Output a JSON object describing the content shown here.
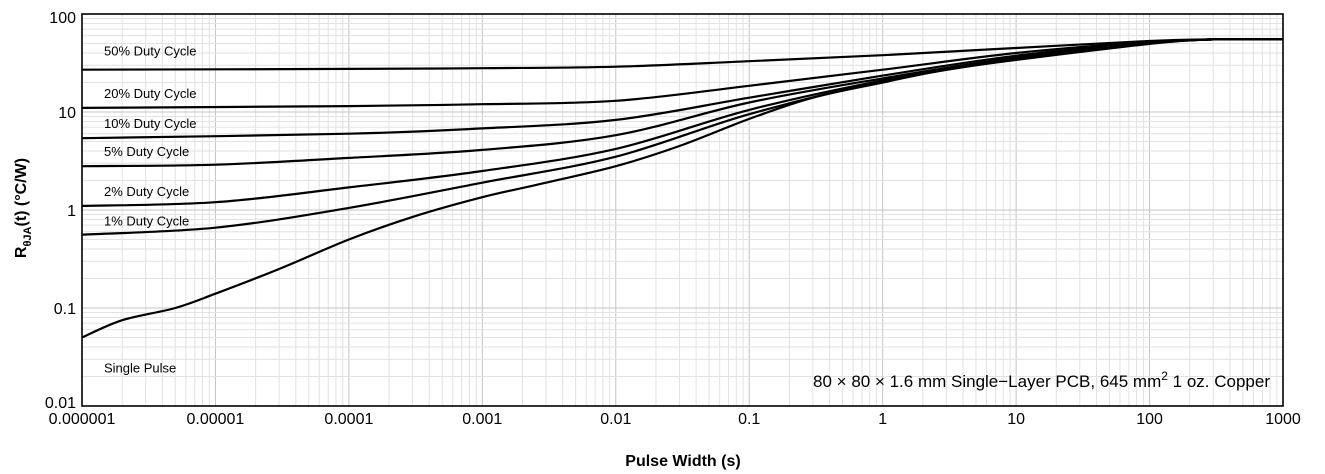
{
  "chart_data": {
    "type": "line",
    "title": "",
    "xlabel": "Pulse Width (s)",
    "ylabel": {
      "main": "R",
      "sub": "θJA",
      "suffix": "(t) (°C/W)"
    },
    "x_scale": "log",
    "y_scale": "log",
    "xlim": [
      1e-06,
      1000
    ],
    "ylim": [
      0.01,
      100
    ],
    "grid": true,
    "x_ticks": [
      {
        "value": 1e-06,
        "label": "0.000001"
      },
      {
        "value": 1e-05,
        "label": "0.00001"
      },
      {
        "value": 0.0001,
        "label": "0.0001"
      },
      {
        "value": 0.001,
        "label": "0.001"
      },
      {
        "value": 0.01,
        "label": "0.01"
      },
      {
        "value": 0.1,
        "label": "0.1"
      },
      {
        "value": 1,
        "label": "1"
      },
      {
        "value": 10,
        "label": "10"
      },
      {
        "value": 100,
        "label": "100"
      },
      {
        "value": 1000,
        "label": "1000"
      }
    ],
    "y_ticks": [
      {
        "value": 0.01,
        "label": "0.01"
      },
      {
        "value": 0.1,
        "label": "0.1"
      },
      {
        "value": 1,
        "label": "1"
      },
      {
        "value": 10,
        "label": "10"
      },
      {
        "value": 100,
        "label": "100"
      }
    ],
    "annotation": {
      "prefix": "80 × 80 × 1.6 mm Single−Layer PCB, 645 mm",
      "sup": "2",
      "suffix": " 1 oz. Copper"
    },
    "series": [
      {
        "name": "50% Duty Cycle",
        "points": [
          [
            1e-06,
            27
          ],
          [
            0.0001,
            27.5
          ],
          [
            0.001,
            28
          ],
          [
            0.01,
            29
          ],
          [
            0.1,
            33
          ],
          [
            1,
            38
          ],
          [
            10,
            45
          ],
          [
            100,
            53
          ],
          [
            300,
            55
          ],
          [
            1000,
            55
          ]
        ]
      },
      {
        "name": "20% Duty Cycle",
        "points": [
          [
            1e-06,
            11
          ],
          [
            0.0001,
            11.5
          ],
          [
            0.001,
            12
          ],
          [
            0.01,
            13
          ],
          [
            0.1,
            18.5
          ],
          [
            1,
            27
          ],
          [
            10,
            40
          ],
          [
            100,
            52
          ],
          [
            300,
            55
          ],
          [
            1000,
            55
          ]
        ]
      },
      {
        "name": "10% Duty Cycle",
        "points": [
          [
            1e-06,
            5.4
          ],
          [
            0.0001,
            6
          ],
          [
            0.001,
            6.8
          ],
          [
            0.01,
            8.3
          ],
          [
            0.1,
            14
          ],
          [
            1,
            23.5
          ],
          [
            10,
            37.5
          ],
          [
            100,
            51
          ],
          [
            300,
            55
          ],
          [
            1000,
            55
          ]
        ]
      },
      {
        "name": "5% Duty Cycle",
        "points": [
          [
            1e-06,
            2.8
          ],
          [
            1e-05,
            2.9
          ],
          [
            0.0001,
            3.4
          ],
          [
            0.001,
            4.1
          ],
          [
            0.01,
            5.8
          ],
          [
            0.1,
            12.5
          ],
          [
            1,
            22
          ],
          [
            10,
            36
          ],
          [
            100,
            50.5
          ],
          [
            300,
            55
          ],
          [
            1000,
            55
          ]
        ]
      },
      {
        "name": "2% Duty Cycle",
        "points": [
          [
            1e-06,
            1.1
          ],
          [
            1e-05,
            1.2
          ],
          [
            0.0001,
            1.7
          ],
          [
            0.001,
            2.5
          ],
          [
            0.01,
            4.2
          ],
          [
            0.1,
            10.5
          ],
          [
            1,
            21
          ],
          [
            10,
            35
          ],
          [
            100,
            50
          ],
          [
            300,
            55
          ],
          [
            1000,
            55
          ]
        ]
      },
      {
        "name": "1% Duty Cycle",
        "points": [
          [
            1e-06,
            0.56
          ],
          [
            1e-05,
            0.66
          ],
          [
            0.0001,
            1.05
          ],
          [
            0.001,
            1.9
          ],
          [
            0.01,
            3.5
          ],
          [
            0.1,
            9.5
          ],
          [
            1,
            20.5
          ],
          [
            10,
            34.5
          ],
          [
            100,
            50
          ],
          [
            300,
            55
          ],
          [
            1000,
            55
          ]
        ]
      },
      {
        "name": "Single Pulse",
        "points": [
          [
            1e-06,
            0.05
          ],
          [
            2e-06,
            0.075
          ],
          [
            5e-06,
            0.1
          ],
          [
            1e-05,
            0.14
          ],
          [
            3e-05,
            0.25
          ],
          [
            0.0001,
            0.5
          ],
          [
            0.0003,
            0.85
          ],
          [
            0.001,
            1.35
          ],
          [
            0.003,
            1.9
          ],
          [
            0.01,
            2.8
          ],
          [
            0.03,
            4.5
          ],
          [
            0.1,
            8.5
          ],
          [
            0.3,
            14
          ],
          [
            1,
            20
          ],
          [
            3,
            27
          ],
          [
            10,
            34
          ],
          [
            100,
            49.5
          ],
          [
            300,
            55
          ],
          [
            1000,
            55
          ]
        ]
      }
    ]
  }
}
